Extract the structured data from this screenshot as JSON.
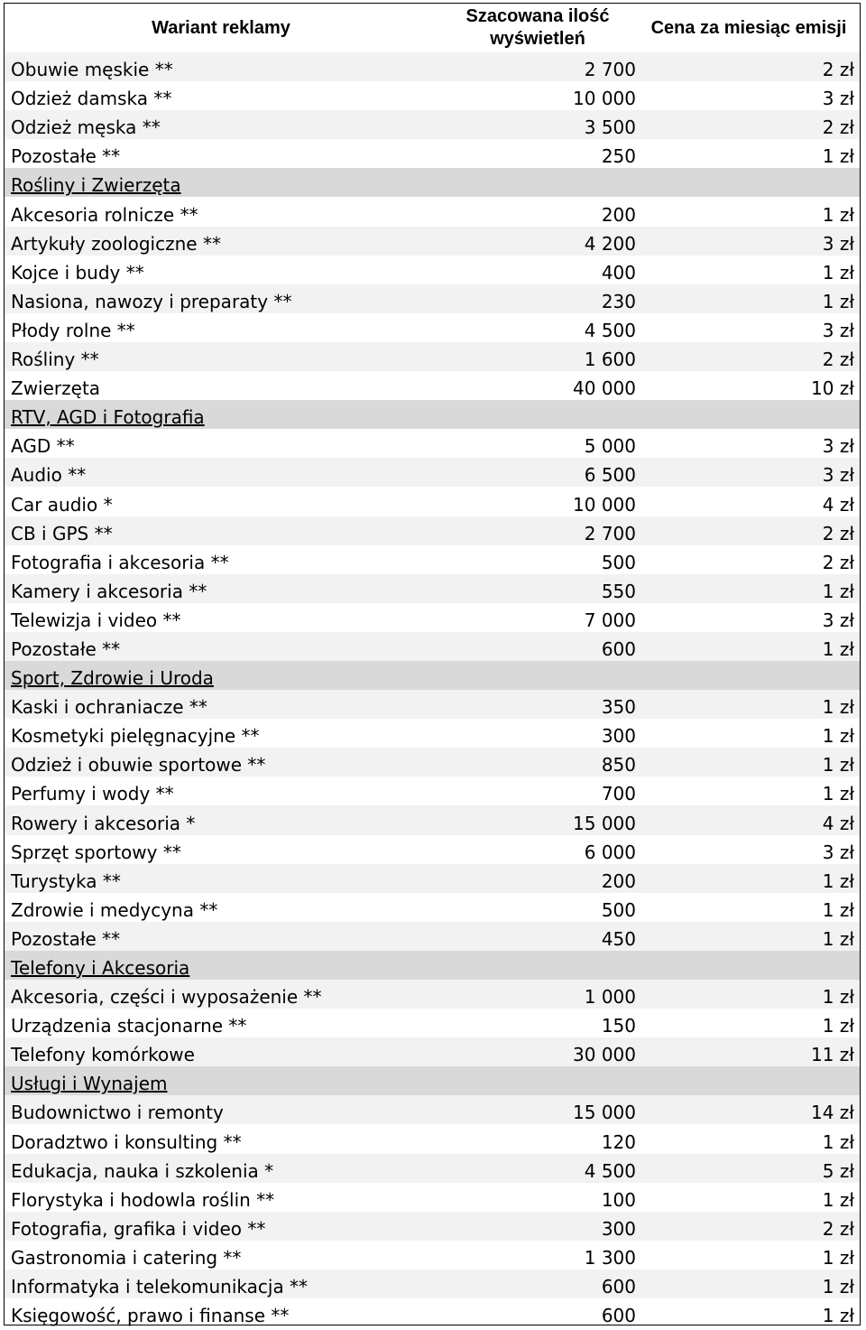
{
  "header": {
    "col_variant": "Wariant reklamy",
    "col_views": "Szacowana ilość wyświetleń",
    "col_price": "Cena za miesiąc emisji"
  },
  "rows": [
    {
      "type": "item",
      "name": "Obuwie męskie **",
      "views": "2 700",
      "price": "2 zł"
    },
    {
      "type": "item",
      "name": "Odzież damska **",
      "views": "10 000",
      "price": "3 zł"
    },
    {
      "type": "item",
      "name": "Odzież męska **",
      "views": "3 500",
      "price": "2 zł"
    },
    {
      "type": "item",
      "name": "Pozostałe **",
      "views": "250",
      "price": "1 zł"
    },
    {
      "type": "category",
      "name": "Rośliny i Zwierzęta",
      "views": "",
      "price": ""
    },
    {
      "type": "item",
      "name": "Akcesoria rolnicze **",
      "views": "200",
      "price": "1 zł"
    },
    {
      "type": "item",
      "name": "Artykuły zoologiczne **",
      "views": "4 200",
      "price": "3 zł"
    },
    {
      "type": "item",
      "name": "Kojce i budy **",
      "views": "400",
      "price": "1 zł"
    },
    {
      "type": "item",
      "name": "Nasiona, nawozy i preparaty **",
      "views": "230",
      "price": "1 zł"
    },
    {
      "type": "item",
      "name": "Płody rolne **",
      "views": "4 500",
      "price": "3 zł"
    },
    {
      "type": "item",
      "name": "Rośliny **",
      "views": "1 600",
      "price": "2 zł"
    },
    {
      "type": "item",
      "name": "Zwierzęta",
      "views": "40 000",
      "price": "10 zł"
    },
    {
      "type": "category",
      "name": "RTV, AGD i Fotografia",
      "views": "",
      "price": ""
    },
    {
      "type": "item",
      "name": "AGD **",
      "views": "5 000",
      "price": "3 zł"
    },
    {
      "type": "item",
      "name": "Audio **",
      "views": "6 500",
      "price": "3 zł"
    },
    {
      "type": "item",
      "name": "Car audio *",
      "views": "10 000",
      "price": "4 zł"
    },
    {
      "type": "item",
      "name": "CB i GPS **",
      "views": "2 700",
      "price": "2 zł"
    },
    {
      "type": "item",
      "name": "Fotografia i akcesoria **",
      "views": "500",
      "price": "2 zł"
    },
    {
      "type": "item",
      "name": "Kamery i akcesoria **",
      "views": "550",
      "price": "1 zł"
    },
    {
      "type": "item",
      "name": "Telewizja i video **",
      "views": "7 000",
      "price": "3 zł"
    },
    {
      "type": "item",
      "name": "Pozostałe **",
      "views": "600",
      "price": "1 zł"
    },
    {
      "type": "category",
      "name": "Sport, Zdrowie i Uroda",
      "views": "",
      "price": ""
    },
    {
      "type": "item",
      "name": "Kaski i ochraniacze **",
      "views": "350",
      "price": "1 zł"
    },
    {
      "type": "item",
      "name": "Kosmetyki pielęgnacyjne **",
      "views": "300",
      "price": "1 zł"
    },
    {
      "type": "item",
      "name": "Odzież i obuwie sportowe **",
      "views": "850",
      "price": "1 zł"
    },
    {
      "type": "item",
      "name": "Perfumy i wody **",
      "views": "700",
      "price": "1 zł"
    },
    {
      "type": "item",
      "name": "Rowery i akcesoria *",
      "views": "15 000",
      "price": "4 zł"
    },
    {
      "type": "item",
      "name": "Sprzęt sportowy **",
      "views": "6 000",
      "price": "3 zł"
    },
    {
      "type": "item",
      "name": "Turystyka **",
      "views": "200",
      "price": "1 zł"
    },
    {
      "type": "item",
      "name": "Zdrowie i medycyna **",
      "views": "500",
      "price": "1 zł"
    },
    {
      "type": "item",
      "name": "Pozostałe **",
      "views": "450",
      "price": "1 zł"
    },
    {
      "type": "category",
      "name": "Telefony i Akcesoria",
      "views": "",
      "price": ""
    },
    {
      "type": "item",
      "name": "Akcesoria, części i wyposażenie **",
      "views": "1 000",
      "price": "1 zł"
    },
    {
      "type": "item",
      "name": "Urządzenia stacjonarne **",
      "views": "150",
      "price": "1 zł"
    },
    {
      "type": "item",
      "name": "Telefony komórkowe",
      "views": "30 000",
      "price": "11 zł"
    },
    {
      "type": "category",
      "name": "Usługi i Wynajem",
      "views": "",
      "price": ""
    },
    {
      "type": "item",
      "name": "Budownictwo i remonty",
      "views": "15 000",
      "price": "14 zł"
    },
    {
      "type": "item",
      "name": "Doradztwo i konsulting **",
      "views": "120",
      "price": "1 zł"
    },
    {
      "type": "item",
      "name": "Edukacja, nauka i szkolenia *",
      "views": "4 500",
      "price": "5 zł"
    },
    {
      "type": "item",
      "name": "Florystyka i hodowla roślin **",
      "views": "100",
      "price": "1 zł"
    },
    {
      "type": "item",
      "name": "Fotografia, grafika i video **",
      "views": "300",
      "price": "2 zł"
    },
    {
      "type": "item",
      "name": "Gastronomia i catering **",
      "views": "1 300",
      "price": "1 zł"
    },
    {
      "type": "item",
      "name": "Informatyka i telekomunikacja **",
      "views": "600",
      "price": "1 zł"
    },
    {
      "type": "item",
      "name": "Księgowość, prawo i finanse **",
      "views": "600",
      "price": "1 zł"
    }
  ]
}
